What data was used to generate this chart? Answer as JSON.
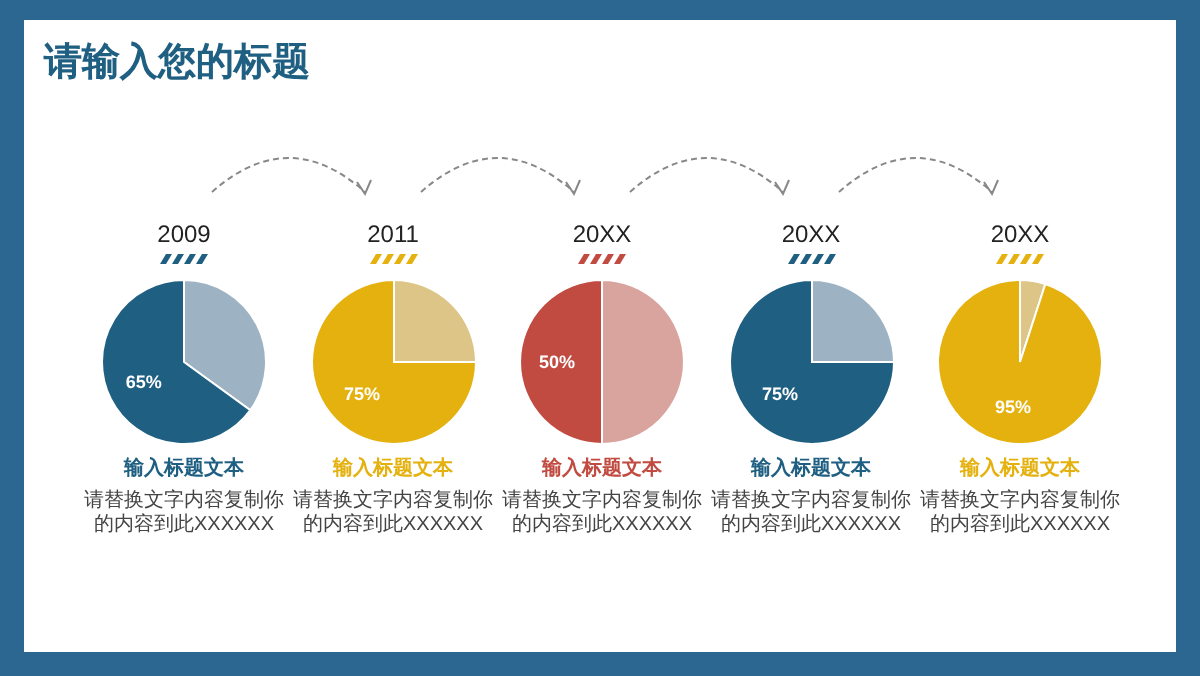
{
  "chart_data": [
    {
      "type": "other",
      "title": "请输入您的标题"
    },
    {
      "type": "pie",
      "title": "2009",
      "subtitle": "输入标题文本",
      "categories": [
        null,
        null
      ],
      "values": [
        65,
        35
      ],
      "colors": [
        "#1f5f82",
        "#9db3c3"
      ],
      "value_labels": [
        "65%",
        null
      ],
      "annotations": [
        "请替换文字内容复制你的内容到此XXXXXX"
      ]
    },
    {
      "type": "pie",
      "title": "2011",
      "subtitle": "输入标题文本",
      "categories": [
        null,
        null
      ],
      "values": [
        75,
        25
      ],
      "colors": [
        "#e4b10f",
        "#dcc587"
      ],
      "value_labels": [
        "75%",
        null
      ],
      "annotations": [
        "请替换文字内容复制你的内容到此XXXXXX"
      ]
    },
    {
      "type": "pie",
      "title": "20XX",
      "subtitle": "输入标题文本",
      "categories": [
        null,
        null
      ],
      "values": [
        50,
        50
      ],
      "colors": [
        "#c14b41",
        "#d9a39e"
      ],
      "value_labels": [
        "50%",
        null
      ],
      "annotations": [
        "请替换文字内容复制你的内容到此XXXXXX"
      ]
    },
    {
      "type": "pie",
      "title": "20XX",
      "subtitle": "输入标题文本",
      "categories": [
        null,
        null
      ],
      "values": [
        75,
        25
      ],
      "colors": [
        "#1f5f82",
        "#9db3c3"
      ],
      "value_labels": [
        "75%",
        null
      ],
      "annotations": [
        "请替换文字内容复制你的内容到此XXXXXX"
      ]
    },
    {
      "type": "pie",
      "title": "20XX",
      "subtitle": "输入标题文本",
      "categories": [
        null,
        null
      ],
      "values": [
        95,
        5
      ],
      "colors": [
        "#e4b10f",
        "#dcc587"
      ],
      "value_labels": [
        "95%",
        null
      ],
      "annotations": [
        "请替换文字内容复制你的内容到此XXXXXX"
      ]
    }
  ]
}
